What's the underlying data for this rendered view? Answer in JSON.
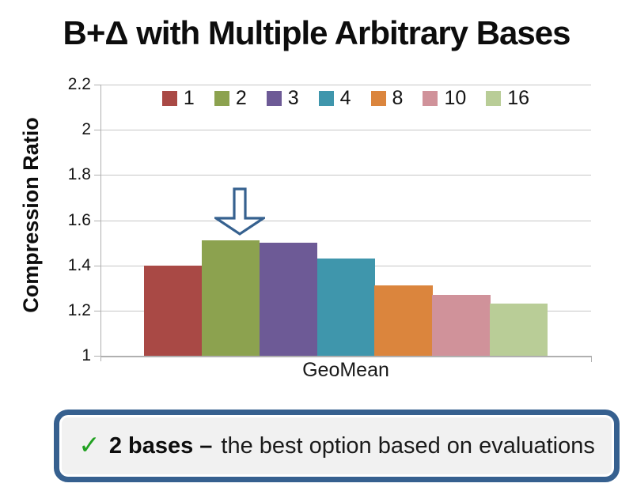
{
  "slide": {
    "title": "B+Δ with Multiple Arbitrary Bases"
  },
  "chart_data": {
    "type": "bar",
    "title": "B+Δ with Multiple Arbitrary Bases",
    "categories": [
      "GeoMean"
    ],
    "series": [
      {
        "name": "1",
        "values": [
          1.4
        ],
        "color": "#a94945"
      },
      {
        "name": "2",
        "values": [
          1.51
        ],
        "color": "#8ca24f"
      },
      {
        "name": "3",
        "values": [
          1.5
        ],
        "color": "#6d5a96"
      },
      {
        "name": "4",
        "values": [
          1.43
        ],
        "color": "#3f96ac"
      },
      {
        "name": "8",
        "values": [
          1.31
        ],
        "color": "#db853d"
      },
      {
        "name": "10",
        "values": [
          1.27
        ],
        "color": "#d0929a"
      },
      {
        "name": "16",
        "values": [
          1.23
        ],
        "color": "#b9cd97"
      }
    ],
    "xlabel": "",
    "ylabel": "Compression Ratio",
    "ylim": [
      1,
      2.2
    ],
    "yticks": [
      "1",
      "1.2",
      "1.4",
      "1.6",
      "1.8",
      "2",
      "2.2"
    ],
    "grid": true,
    "legend_position": "top-center",
    "annotation": {
      "type": "down-arrow",
      "points_to_series": "2"
    },
    "gridline_color": "#c6c6c6",
    "axis_color": "#b0b0b0",
    "arrow_color": "#36618f"
  },
  "callout": {
    "check_icon": "✓",
    "bold_text": "2 bases –",
    "regular_text": "the best option based on evaluations",
    "border_color": "#36608f",
    "background": "#f1f1f1",
    "check_color": "#21a121"
  }
}
